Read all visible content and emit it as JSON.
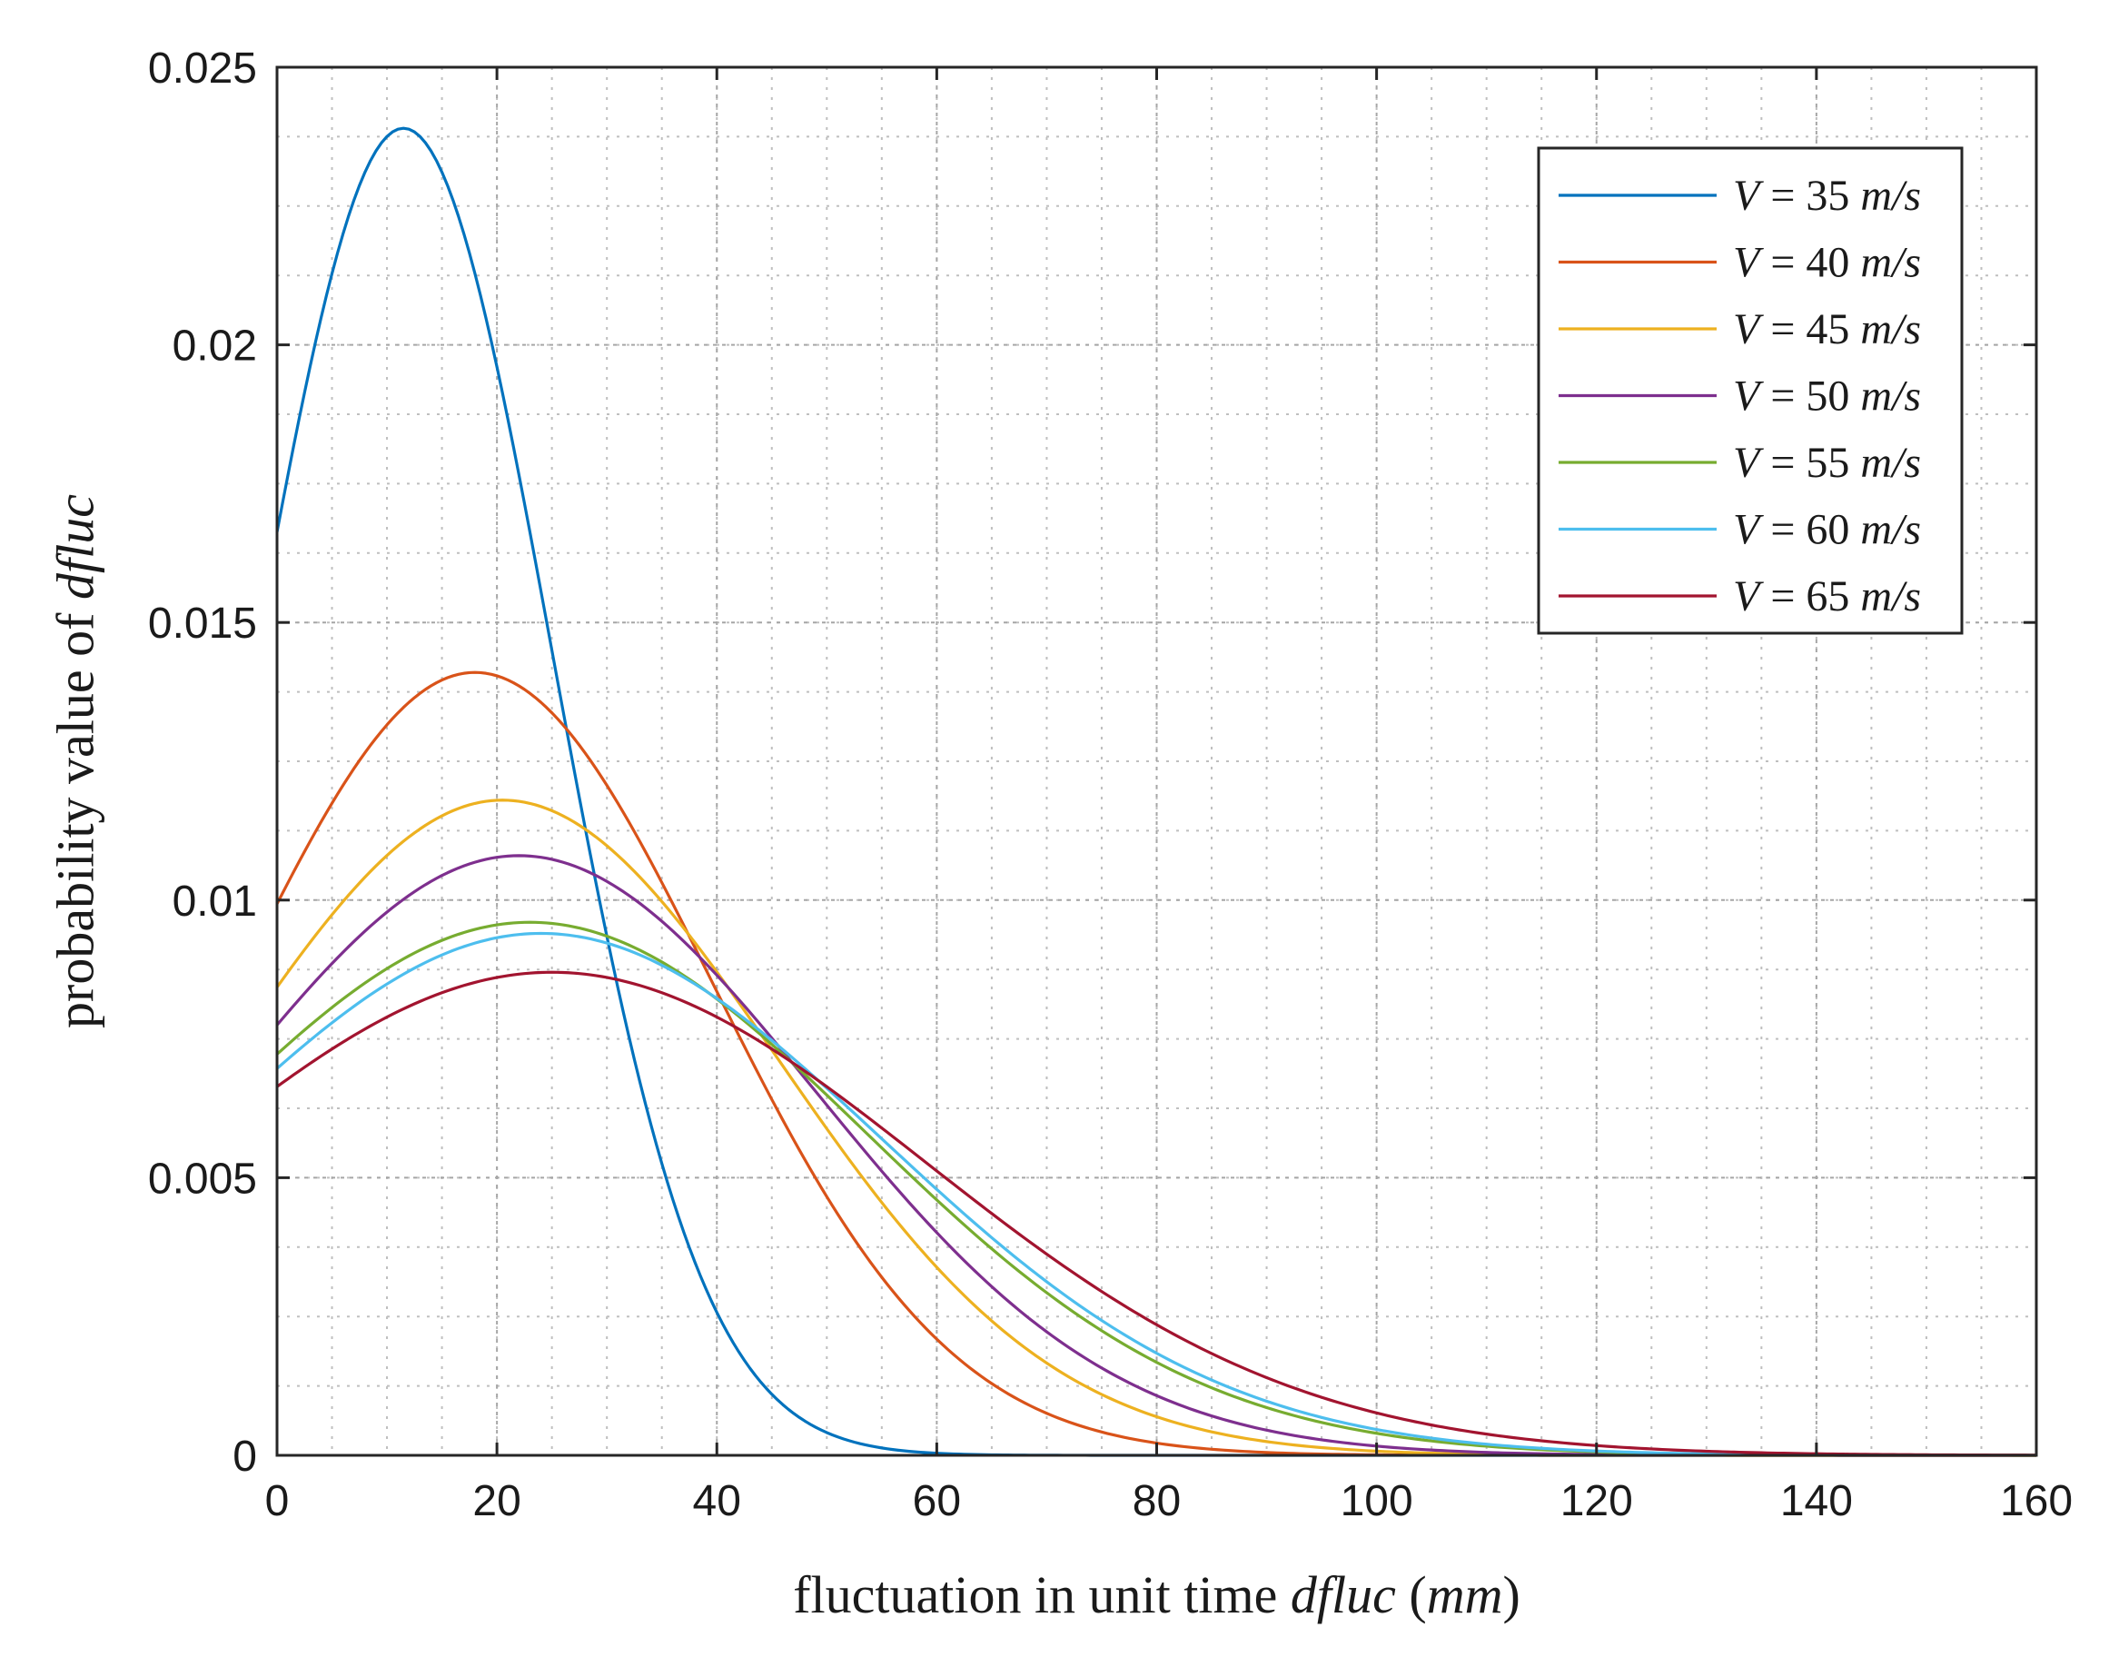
{
  "chart_data": {
    "type": "line",
    "title": "",
    "xlabel": {
      "parts": [
        {
          "text": "fluctuation in unit time ",
          "italic": false
        },
        {
          "text": "dfluc",
          "italic": true
        },
        {
          "text": " (",
          "italic": false
        },
        {
          "text": "mm",
          "italic": true
        },
        {
          "text": ")",
          "italic": false
        }
      ]
    },
    "ylabel": {
      "parts": [
        {
          "text": "probability value of ",
          "italic": false
        },
        {
          "text": "dfluc",
          "italic": true
        }
      ]
    },
    "xlim": [
      0,
      160
    ],
    "ylim": [
      0,
      0.025
    ],
    "xticks": [
      0,
      20,
      40,
      60,
      80,
      100,
      120,
      140,
      160
    ],
    "xtick_labels": [
      "0",
      "20",
      "40",
      "60",
      "80",
      "100",
      "120",
      "140",
      "160"
    ],
    "yticks": [
      0,
      0.005,
      0.01,
      0.015,
      0.02,
      0.025
    ],
    "ytick_labels": [
      "0",
      "0.005",
      "0.01",
      "0.015",
      "0.02",
      "0.025"
    ],
    "grid": true,
    "minor_grid": true,
    "legend_position": "top-right",
    "series": [
      {
        "name": "V = 35 m/s",
        "color": "#0072BD",
        "mean": 11.5,
        "sd": 13.5,
        "peak": 0.0239
      },
      {
        "name": "V = 40 m/s",
        "color": "#D95319",
        "mean": 18.0,
        "sd": 21.5,
        "peak": 0.0141
      },
      {
        "name": "V = 45 m/s",
        "color": "#EDB120",
        "mean": 20.5,
        "sd": 25.0,
        "peak": 0.0118
      },
      {
        "name": "V = 50 m/s",
        "color": "#7E2F8E",
        "mean": 22.0,
        "sd": 27.0,
        "peak": 0.0108
      },
      {
        "name": "V = 55 m/s",
        "color": "#77AC30",
        "mean": 23.0,
        "sd": 30.5,
        "peak": 0.0096
      },
      {
        "name": "V = 60 m/s",
        "color": "#4DBEEE",
        "mean": 24.0,
        "sd": 31.0,
        "peak": 0.0094
      },
      {
        "name": "V = 65 m/s",
        "color": "#A2142F",
        "mean": 25.0,
        "sd": 34.0,
        "peak": 0.0087
      }
    ],
    "legend_entries": [
      {
        "prefix": "V",
        "middle": " = 35 ",
        "unit": "m/s"
      },
      {
        "prefix": "V",
        "middle": " = 40 ",
        "unit": "m/s"
      },
      {
        "prefix": "V",
        "middle": " = 45 ",
        "unit": "m/s"
      },
      {
        "prefix": "V",
        "middle": " = 50 ",
        "unit": "m/s"
      },
      {
        "prefix": "V",
        "middle": " = 55 ",
        "unit": "m/s"
      },
      {
        "prefix": "V",
        "middle": " = 60 ",
        "unit": "m/s"
      },
      {
        "prefix": "V",
        "middle": " = 65 ",
        "unit": "m/s"
      }
    ]
  }
}
